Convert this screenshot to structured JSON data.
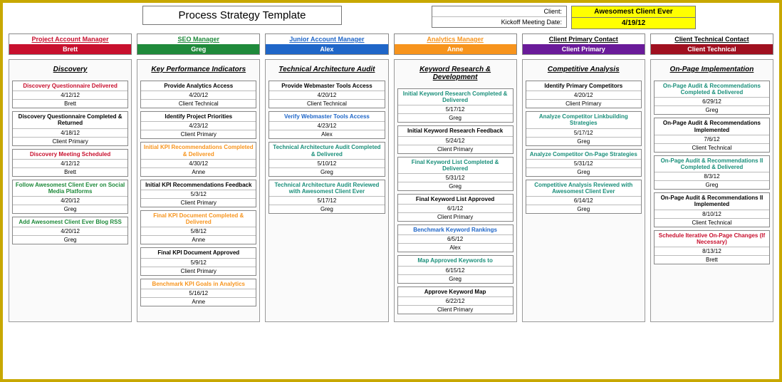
{
  "colors": {
    "red": "#c8102e",
    "green": "#1f8a3b",
    "blue": "#1f66c8",
    "orange": "#f7941d",
    "purple": "#6a1b9a",
    "darkred": "#a01020",
    "teal": "#1a8f7a",
    "black": "#000000"
  },
  "header": {
    "title": "Process Strategy Template",
    "meta_client_label": "Client:",
    "meta_kickoff_label": "Kickoff Meeting Date:",
    "client_name": "Awesomest Client Ever",
    "client_date": "4/19/12"
  },
  "roles": [
    {
      "title": "Project Account Manager",
      "name": "Brett",
      "title_color": "#c8102e",
      "bar_color": "#c8102e"
    },
    {
      "title": "SEO Manager",
      "name": "Greg",
      "title_color": "#1f8a3b",
      "bar_color": "#1f8a3b"
    },
    {
      "title": "Junior Account Manager",
      "name": "Alex",
      "title_color": "#1f66c8",
      "bar_color": "#1f66c8"
    },
    {
      "title": "Analytics Manager",
      "name": "Anne",
      "title_color": "#f7941d",
      "bar_color": "#f7941d"
    },
    {
      "title": "Client Primary Contact",
      "name": "Client Primary",
      "title_color": "#000000",
      "bar_color": "#6a1b9a"
    },
    {
      "title": "Client Technical Contact",
      "name": "Client Technical",
      "title_color": "#000000",
      "bar_color": "#a01020"
    }
  ],
  "columns": [
    {
      "title": "Discovery",
      "tasks": [
        {
          "title": "Discovery Questionnaire Delivered",
          "color": "#c8102e",
          "date": "4/12/12",
          "owner": "Brett"
        },
        {
          "title": "Discovery Questionnaire Completed & Returned",
          "color": "#000000",
          "date": "4/18/12",
          "owner": "Client Primary"
        },
        {
          "title": "Discovery Meeting Scheduled",
          "color": "#c8102e",
          "date": "4/12/12",
          "owner": "Brett"
        },
        {
          "title": "Follow Awesomest Client Ever on Social Media Platforms",
          "color": "#1f8a3b",
          "date": "4/20/12",
          "owner": "Greg"
        },
        {
          "title": "Add Awesomest Client Ever Blog RSS",
          "color": "#1f8a3b",
          "date": "4/20/12",
          "owner": "Greg"
        }
      ]
    },
    {
      "title": "Key Performance Indicators",
      "tasks": [
        {
          "title": "Provide Analytics Access",
          "color": "#000000",
          "date": "4/20/12",
          "owner": "Client Technical"
        },
        {
          "title": "Identify Project Priorities",
          "color": "#000000",
          "date": "4/23/12",
          "owner": "Client Primary"
        },
        {
          "title": "Initial KPI Recommendations Completed & Delivered",
          "color": "#f7941d",
          "date": "4/30/12",
          "owner": "Anne"
        },
        {
          "title": "Initial KPI Recommendations Feedback",
          "color": "#000000",
          "date": "5/3/12",
          "owner": "Client Primary"
        },
        {
          "title": "Final KPI Document Completed & Delivered",
          "color": "#f7941d",
          "date": "5/8/12",
          "owner": "Anne"
        },
        {
          "title": "Final KPI Document Approved",
          "color": "#000000",
          "date": "5/9/12",
          "owner": "Client Primary"
        },
        {
          "title": "Benchmark KPI Goals in Analytics",
          "color": "#f7941d",
          "date": "5/16/12",
          "owner": "Anne"
        }
      ]
    },
    {
      "title": "Technical Architecture Audit",
      "tasks": [
        {
          "title": "Provide Webmaster Tools Access",
          "color": "#000000",
          "date": "4/20/12",
          "owner": "Client Technical"
        },
        {
          "title": "Verify Webmaster Tools Access",
          "color": "#1f66c8",
          "date": "4/23/12",
          "owner": "Alex"
        },
        {
          "title": "Technical Architecture Audit Completed & Delivered",
          "color": "#1a8f7a",
          "date": "5/10/12",
          "owner": "Greg"
        },
        {
          "title": "Technical Architecture Audit Reviewed with Awesomest Client Ever",
          "color": "#1a8f7a",
          "date": "5/17/12",
          "owner": "Greg"
        }
      ]
    },
    {
      "title": "Keyword Research & Development",
      "tasks": [
        {
          "title": "Initial Keyword Research Completed & Delivered",
          "color": "#1a8f7a",
          "date": "5/17/12",
          "owner": "Greg"
        },
        {
          "title": "Initial Keyword Research Feedback",
          "color": "#000000",
          "date": "5/24/12",
          "owner": "Client Primary"
        },
        {
          "title": "Final Keyword List Completed & Delivered",
          "color": "#1a8f7a",
          "date": "5/31/12",
          "owner": "Greg"
        },
        {
          "title": "Final Keyword List Approved",
          "color": "#000000",
          "date": "6/1/12",
          "owner": "Client Primary"
        },
        {
          "title": "Benchmark Keyword Rankings",
          "color": "#1f66c8",
          "date": "6/5/12",
          "owner": "Alex"
        },
        {
          "title": "Map Approved Keywords to",
          "color": "#1a8f7a",
          "date": "6/15/12",
          "owner": "Greg"
        },
        {
          "title": "Approve Keyword Map",
          "color": "#000000",
          "date": "6/22/12",
          "owner": "Client Primary"
        }
      ]
    },
    {
      "title": "Competitive Analysis",
      "tasks": [
        {
          "title": "Identify Primary Competitors",
          "color": "#000000",
          "date": "4/20/12",
          "owner": "Client Primary"
        },
        {
          "title": "Analyze Competitor Linkbuilding Strategies",
          "color": "#1a8f7a",
          "date": "5/17/12",
          "owner": "Greg"
        },
        {
          "title": "Analyze Competitor On-Page Strategies",
          "color": "#1a8f7a",
          "date": "5/31/12",
          "owner": "Greg"
        },
        {
          "title": "Competitive Analysis Reviewed with Awesomest Client Ever",
          "color": "#1a8f7a",
          "date": "6/14/12",
          "owner": "Greg"
        }
      ]
    },
    {
      "title": "On-Page Implementation",
      "tasks": [
        {
          "title": "On-Page Audit & Recommendations Completed & Delivered",
          "color": "#1a8f7a",
          "date": "6/29/12",
          "owner": "Greg"
        },
        {
          "title": "On-Page Audit & Recommendations Implemented",
          "color": "#000000",
          "date": "7/6/12",
          "owner": "Client Technical"
        },
        {
          "title": "On-Page Audit & Recommendations II Completed & Delivered",
          "color": "#1a8f7a",
          "date": "8/3/12",
          "owner": "Greg"
        },
        {
          "title": "On-Page Audit & Recommendations II Implemented",
          "color": "#000000",
          "date": "8/10/12",
          "owner": "Client Technical"
        },
        {
          "title": "Schedule Iterative On-Page Changes (If Necessary)",
          "color": "#c8102e",
          "date": "8/13/12",
          "owner": "Brett"
        }
      ]
    }
  ]
}
